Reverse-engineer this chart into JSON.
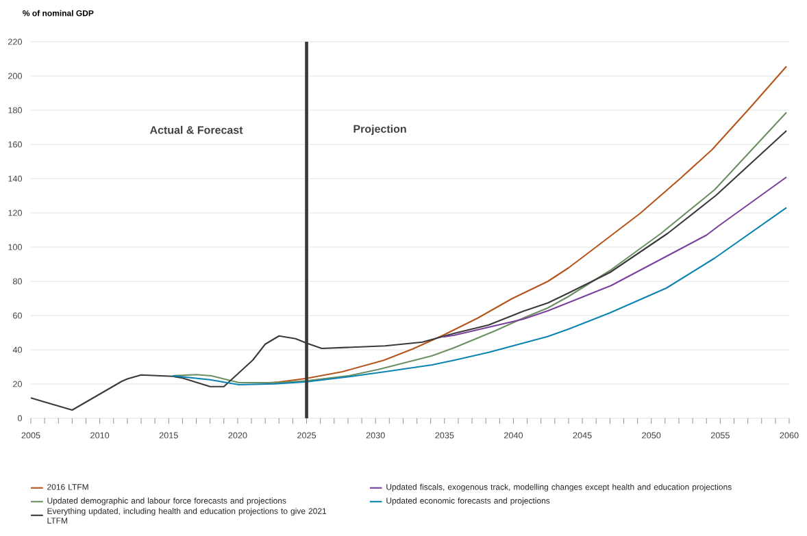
{
  "chart_data": {
    "type": "line",
    "ylabel": "% of nominal GDP",
    "xlim": [
      2005,
      2060
    ],
    "ylim": [
      0,
      220
    ],
    "xticks": [
      2005,
      2010,
      2015,
      2020,
      2025,
      2030,
      2035,
      2040,
      2045,
      2050,
      2055,
      2060
    ],
    "yticks": [
      0,
      20,
      40,
      60,
      80,
      100,
      120,
      140,
      160,
      180,
      200,
      220
    ],
    "grid": "y",
    "legend": "bottom",
    "line_style": "solid",
    "marker": "none",
    "ref_lines": [
      {
        "axis": "x",
        "value": 2025,
        "color": "#3a3a3a"
      }
    ],
    "annotations": [
      "Actual & Forecast",
      "Projection"
    ],
    "series": [
      {
        "name": "2016 LTFM",
        "color": "#b5541c",
        "x": [
          2022,
          2023,
          2025,
          2027.6,
          2030.6,
          2032.7,
          2034.9,
          2037.4,
          2039.9,
          2042.5,
          2044,
          2046,
          2049.2,
          2052.1,
          2054.4,
          2057.1,
          2059.8
        ],
        "values": [
          20.6,
          21.2,
          23.3,
          27.2,
          33.9,
          40.5,
          48.5,
          58.5,
          69.9,
          80,
          87.9,
          100.1,
          119.8,
          140.1,
          156.9,
          180.9,
          205.6
        ]
      },
      {
        "name": "Updated demographic and labour force forecasts and projections",
        "color": "#6b8f63",
        "x": [
          2015.3,
          2017,
          2018.1,
          2020.1,
          2023,
          2025,
          2028.1,
          2030.2,
          2034.1,
          2035.7,
          2038.7,
          2040.7,
          2042.5,
          2044,
          2047,
          2050.7,
          2054.6,
          2059.8
        ],
        "values": [
          24.8,
          25.5,
          24.8,
          20.8,
          20.8,
          21.9,
          24.9,
          28.5,
          36.5,
          41.2,
          51.2,
          58.5,
          64.5,
          71.2,
          86.3,
          108,
          133.6,
          178.7
        ]
      },
      {
        "name": "Everything updated, including health and education projections to give 2021 LTFM",
        "color": "#3a3a3a",
        "x": [
          2005,
          2006,
          2008,
          2011.6,
          2012,
          2013,
          2015.3,
          2016,
          2018,
          2019,
          2021.1,
          2022,
          2023,
          2024.2,
          2025,
          2026.1,
          2030.7,
          2033.4,
          2035.7,
          2038.2,
          2040.7,
          2042.5,
          2044,
          2047,
          2051.2,
          2054.7,
          2059.8
        ],
        "values": [
          11.9,
          9.5,
          4.8,
          21.6,
          23,
          25.3,
          24.5,
          23.5,
          18.5,
          18.5,
          34,
          43.3,
          48.1,
          46.5,
          43.9,
          40.8,
          42.3,
          44.5,
          49.6,
          54.5,
          62.5,
          67.4,
          73.2,
          85.2,
          108.1,
          130.3,
          168
        ]
      },
      {
        "name": "Updated fiscals, exogenous track, modelling changes except health and education projections",
        "color": "#7b3f9e",
        "x": [
          2034.9,
          2035.7,
          2038.2,
          2040.7,
          2042.5,
          2044,
          2047.1,
          2054,
          2054.9,
          2059.8
        ],
        "values": [
          47.5,
          48.5,
          53.2,
          57.9,
          62.8,
          67.6,
          77.6,
          107,
          112.5,
          140.9
        ]
      },
      {
        "name": "Updated economic forecasts and projections",
        "color": "#0a83b0",
        "x": [
          2015.3,
          2018,
          2020.1,
          2022.7,
          2025,
          2028.1,
          2030.7,
          2034.1,
          2035.7,
          2038.2,
          2040.7,
          2042.5,
          2044,
          2047,
          2051.1,
          2054.6,
          2059.8
        ],
        "values": [
          24.8,
          22.5,
          19.6,
          20.1,
          21.3,
          24.3,
          27.2,
          31.2,
          33.9,
          38.5,
          43.9,
          47.8,
          52.1,
          61.6,
          76.1,
          93.6,
          123
        ]
      }
    ]
  }
}
